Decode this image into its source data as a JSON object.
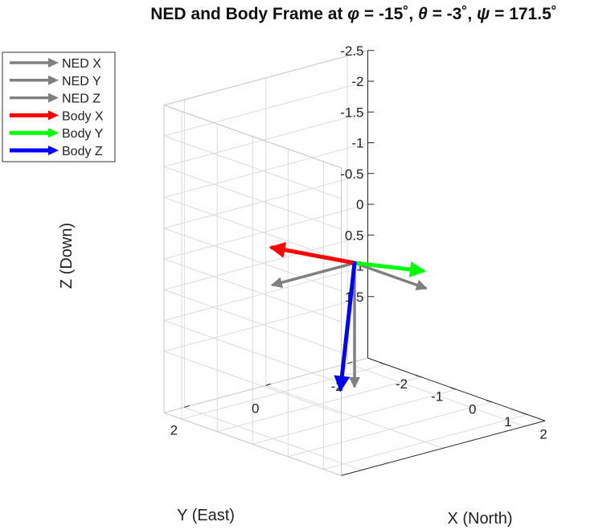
{
  "chart_data": {
    "type": "quiver3d",
    "title": "NED and Body Frame at φ = -15˚, θ = -3˚, ψ = 171.5˚",
    "title_parts": [
      "NED and Body Frame at ",
      "φ",
      " = -15˚, ",
      "θ",
      " = -3˚, ",
      "ψ",
      " = 171.5˚"
    ],
    "xlabel": "X (North)",
    "ylabel": "Y (East)",
    "zlabel": "Z (Down)",
    "xlim": [
      -2.5,
      2.5
    ],
    "ylim": [
      -2.5,
      2.5
    ],
    "zlim": [
      -2.5,
      2.5
    ],
    "x_ticks": [
      "-2",
      "-1",
      "0",
      "1",
      "2"
    ],
    "y_ticks": [
      "-2",
      "0",
      "2"
    ],
    "z_ticks": [
      "-2.5",
      "-2",
      "-1.5",
      "-1",
      "-0.5",
      "0",
      "0.5",
      "1",
      "1.5"
    ],
    "z_axis_direction": "reverse",
    "grid": true,
    "legend_position": "top-left",
    "series": [
      {
        "name": "NED X",
        "color": "#808080",
        "vector": [
          1,
          0,
          0
        ]
      },
      {
        "name": "NED Y",
        "color": "#808080",
        "vector": [
          0,
          1,
          0
        ]
      },
      {
        "name": "NED Z",
        "color": "#808080",
        "vector": [
          0,
          0,
          1
        ]
      },
      {
        "name": "Body X",
        "color": "#ff0000",
        "vector": [
          -0.99,
          0.15,
          0.05
        ]
      },
      {
        "name": "Body Y",
        "color": "#00ff00",
        "vector": [
          -0.13,
          -0.95,
          0.26
        ]
      },
      {
        "name": "Body Z",
        "color": "#0000ff",
        "vector": [
          0.09,
          0.25,
          0.96
        ]
      }
    ]
  }
}
